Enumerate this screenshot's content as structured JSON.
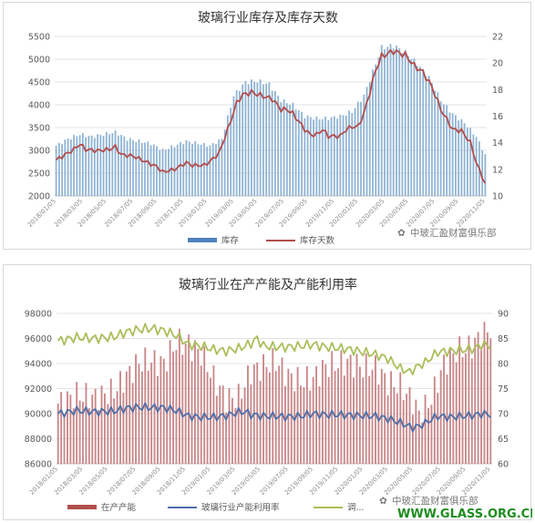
{
  "chart_data": [
    {
      "type": "bar+line",
      "title": "玻璃行业库存及库存天数",
      "x_labels": [
        "2018/01/05",
        "2018/03/05",
        "2018/05/05",
        "2018/07/05",
        "2018/09/05",
        "2018/11/05",
        "2019/01/05",
        "2019/03/05",
        "2019/05/05",
        "2019/07/05",
        "2019/09/05",
        "2019/11/05",
        "2020/01/05",
        "2020/03/05",
        "2020/05/05",
        "2020/07/05",
        "2020/09/05",
        "2020/11/05"
      ],
      "y_left": {
        "ylim": [
          2000,
          5500
        ],
        "ticks": [
          "2000",
          "2500",
          "3000",
          "3500",
          "4000",
          "4500",
          "5000",
          "5500"
        ]
      },
      "y_right": {
        "ylim": [
          10,
          22
        ],
        "ticks": [
          "10",
          "12",
          "14",
          "16",
          "18",
          "20",
          "22"
        ]
      },
      "series": [
        {
          "name": "库存",
          "type": "bar",
          "axis": "left",
          "color": "#8fb3d3",
          "knots": [
            [
              0,
              3100
            ],
            [
              4,
              3250
            ],
            [
              8,
              3350
            ],
            [
              12,
              3300
            ],
            [
              16,
              3350
            ],
            [
              20,
              3400
            ],
            [
              24,
              3250
            ],
            [
              28,
              3200
            ],
            [
              32,
              3150
            ],
            [
              36,
              3000
            ],
            [
              40,
              3100
            ],
            [
              44,
              3200
            ],
            [
              48,
              3150
            ],
            [
              52,
              3100
            ],
            [
              56,
              3250
            ],
            [
              60,
              4200
            ],
            [
              64,
              4500
            ],
            [
              68,
              4520
            ],
            [
              72,
              4450
            ],
            [
              76,
              4100
            ],
            [
              80,
              4000
            ],
            [
              84,
              3750
            ],
            [
              88,
              3700
            ],
            [
              92,
              3700
            ],
            [
              96,
              3750
            ],
            [
              100,
              3850
            ],
            [
              104,
              4200
            ],
            [
              108,
              4900
            ],
            [
              110,
              5250
            ],
            [
              114,
              5300
            ],
            [
              118,
              5150
            ],
            [
              122,
              4900
            ],
            [
              126,
              4600
            ],
            [
              130,
              4100
            ],
            [
              134,
              3800
            ],
            [
              138,
              3600
            ],
            [
              142,
              3300
            ],
            [
              145,
              2900
            ]
          ]
        },
        {
          "name": "库存天数",
          "type": "line",
          "axis": "right",
          "color": "#b24d4d",
          "knots": [
            [
              0,
              12.7
            ],
            [
              3,
              13.1
            ],
            [
              6,
              13.5
            ],
            [
              8,
              13.9
            ],
            [
              10,
              13.5
            ],
            [
              14,
              13.4
            ],
            [
              18,
              13.5
            ],
            [
              20,
              13.7
            ],
            [
              22,
              13.1
            ],
            [
              26,
              13.0
            ],
            [
              30,
              12.6
            ],
            [
              34,
              12.2
            ],
            [
              36,
              11.8
            ],
            [
              40,
              12.0
            ],
            [
              44,
              12.5
            ],
            [
              46,
              12.3
            ],
            [
              50,
              12.3
            ],
            [
              52,
              12.6
            ],
            [
              55,
              13.2
            ],
            [
              58,
              15.0
            ],
            [
              61,
              17.0
            ],
            [
              63,
              17.6
            ],
            [
              66,
              17.8
            ],
            [
              70,
              17.5
            ],
            [
              73,
              17.3
            ],
            [
              76,
              16.5
            ],
            [
              78,
              16.5
            ],
            [
              80,
              16.2
            ],
            [
              84,
              15.0
            ],
            [
              86,
              14.6
            ],
            [
              88,
              14.6
            ],
            [
              90,
              15.0
            ],
            [
              92,
              14.5
            ],
            [
              94,
              14.5
            ],
            [
              96,
              14.5
            ],
            [
              98,
              15.0
            ],
            [
              100,
              15.2
            ],
            [
              102,
              15.2
            ],
            [
              104,
              16.2
            ],
            [
              106,
              17.8
            ],
            [
              108,
              19.5
            ],
            [
              110,
              20.5
            ],
            [
              114,
              20.9
            ],
            [
              118,
              20.6
            ],
            [
              121,
              19.8
            ],
            [
              124,
              19.3
            ],
            [
              127,
              18.2
            ],
            [
              130,
              16.5
            ],
            [
              134,
              15.0
            ],
            [
              137,
              14.9
            ],
            [
              140,
              14.0
            ],
            [
              142,
              12.5
            ],
            [
              145,
              10.9
            ]
          ]
        }
      ],
      "n_points": 146
    },
    {
      "type": "bar+line",
      "title": "玻璃行业在产产能及产能利用率",
      "x_labels": [
        "2018/01/05",
        "2018/03/05",
        "2018/05/05",
        "2018/07/05",
        "2018/09/05",
        "2018/11/05",
        "2019/01/05",
        "2019/03/05",
        "2019/05/05",
        "2019/07/05",
        "2019/09/05",
        "2019/11/05",
        "2020/01/05",
        "2020/03/05",
        "2020/05/05",
        "2020/07/05",
        "2020/09/05",
        "2020/11/05"
      ],
      "y_left": {
        "ylim": [
          86000,
          98000
        ],
        "ticks": [
          "86000",
          "88000",
          "90000",
          "92000",
          "94000",
          "96000",
          "98000"
        ]
      },
      "y_right": {
        "ylim": [
          60,
          90
        ],
        "ticks": [
          "60",
          "65",
          "70",
          "75",
          "80",
          "85",
          "90"
        ]
      },
      "series": [
        {
          "name": "在产产能",
          "type": "bar",
          "axis": "left",
          "color": "#c9888a",
          "knots": [
            [
              0,
              90800
            ],
            [
              6,
              91500
            ],
            [
              12,
              91300
            ],
            [
              18,
              91800
            ],
            [
              22,
              93000
            ],
            [
              26,
              94100
            ],
            [
              30,
              94200
            ],
            [
              34,
              94000
            ],
            [
              38,
              95700
            ],
            [
              42,
              95500
            ],
            [
              46,
              94800
            ],
            [
              50,
              92800
            ],
            [
              54,
              91200
            ],
            [
              58,
              91300
            ],
            [
              62,
              93400
            ],
            [
              66,
              93800
            ],
            [
              70,
              94200
            ],
            [
              74,
              93000
            ],
            [
              78,
              92600
            ],
            [
              82,
              92800
            ],
            [
              86,
              93800
            ],
            [
              90,
              94000
            ],
            [
              94,
              94100
            ],
            [
              98,
              93700
            ],
            [
              102,
              93700
            ],
            [
              106,
              92500
            ],
            [
              110,
              92200
            ],
            [
              114,
              91000
            ],
            [
              116,
              90000
            ],
            [
              118,
              90500
            ],
            [
              120,
              91200
            ],
            [
              124,
              94000
            ],
            [
              128,
              95000
            ],
            [
              132,
              95200
            ],
            [
              136,
              96200
            ],
            [
              139,
              96800
            ]
          ]
        },
        {
          "name": "玻璃行业产能利用率",
          "type": "line",
          "axis": "right",
          "color": "#4f6fa8",
          "knots": [
            [
              0,
              70.0
            ],
            [
              6,
              70.6
            ],
            [
              12,
              70.4
            ],
            [
              18,
              70.5
            ],
            [
              22,
              71.1
            ],
            [
              26,
              71.3
            ],
            [
              30,
              71.2
            ],
            [
              34,
              71.2
            ],
            [
              38,
              70.6
            ],
            [
              42,
              69.5
            ],
            [
              46,
              69.3
            ],
            [
              50,
              69.3
            ],
            [
              54,
              69.6
            ],
            [
              58,
              70.3
            ],
            [
              60,
              70.4
            ],
            [
              62,
              69.8
            ],
            [
              66,
              69.5
            ],
            [
              70,
              69.5
            ],
            [
              74,
              69.4
            ],
            [
              78,
              69.5
            ],
            [
              82,
              70.0
            ],
            [
              86,
              69.8
            ],
            [
              90,
              69.8
            ],
            [
              94,
              69.7
            ],
            [
              98,
              69.6
            ],
            [
              102,
              69.5
            ],
            [
              106,
              69.0
            ],
            [
              110,
              68.2
            ],
            [
              114,
              67.2
            ],
            [
              116,
              67.5
            ],
            [
              118,
              68.1
            ],
            [
              120,
              68.9
            ],
            [
              122,
              69.5
            ],
            [
              126,
              69.3
            ],
            [
              130,
              69.5
            ],
            [
              134,
              69.7
            ],
            [
              136,
              70.0
            ],
            [
              139,
              69.8
            ]
          ]
        },
        {
          "name": "调...",
          "type": "line",
          "axis": "right",
          "color": "#a9bf5a",
          "knots": [
            [
              0,
              84.5
            ],
            [
              6,
              85.2
            ],
            [
              12,
              85.0
            ],
            [
              18,
              85.3
            ],
            [
              22,
              86.3
            ],
            [
              26,
              86.8
            ],
            [
              30,
              87.0
            ],
            [
              34,
              86.6
            ],
            [
              38,
              85.6
            ],
            [
              42,
              83.8
            ],
            [
              46,
              83.5
            ],
            [
              50,
              82.8
            ],
            [
              54,
              82.5
            ],
            [
              58,
              83.0
            ],
            [
              62,
              84.0
            ],
            [
              64,
              85.0
            ],
            [
              66,
              83.5
            ],
            [
              70,
              83.3
            ],
            [
              74,
              83.3
            ],
            [
              78,
              83.5
            ],
            [
              82,
              83.8
            ],
            [
              86,
              83.3
            ],
            [
              90,
              83.1
            ],
            [
              94,
              82.8
            ],
            [
              98,
              82.3
            ],
            [
              102,
              81.8
            ],
            [
              106,
              81.0
            ],
            [
              110,
              79.0
            ],
            [
              113,
              78.3
            ],
            [
              116,
              79.6
            ],
            [
              118,
              80.2
            ],
            [
              122,
              82.3
            ],
            [
              126,
              82.5
            ],
            [
              130,
              82.7
            ],
            [
              134,
              83.0
            ],
            [
              136,
              83.8
            ],
            [
              139,
              83.5
            ]
          ]
        }
      ],
      "n_points": 140
    }
  ],
  "legend1": {
    "item1": "库存",
    "item2": "库存天数"
  },
  "legend2": {
    "item1": "在产产能",
    "item2": "玻璃行业产能利用率",
    "item3": "调..."
  },
  "watermark": {
    "text1": "中玻汇盈财富俱乐部",
    "text2": "中玻汇盈财富俱乐部",
    "site": "WWW.GLASS.ORG.CN"
  }
}
